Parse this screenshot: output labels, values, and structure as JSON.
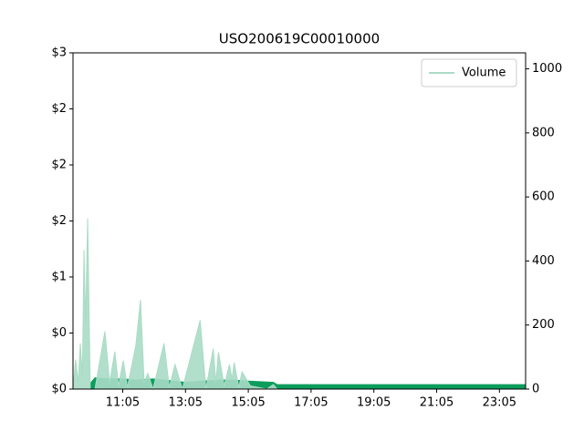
{
  "chart_data": {
    "type": "area",
    "title": "USO200619C00010000",
    "xlim": [
      "09:30",
      "23:55"
    ],
    "xticks": [
      "11:05",
      "13:05",
      "15:05",
      "17:05",
      "19:05",
      "21:05",
      "23:05"
    ],
    "ylim": [
      0,
      3
    ],
    "yticks": [
      {
        "value": 0,
        "label": "$0"
      },
      {
        "value": 0.5,
        "label": "$0"
      },
      {
        "value": 1,
        "label": "$1"
      },
      {
        "value": 1.5,
        "label": "$2"
      },
      {
        "value": 2,
        "label": "$2"
      },
      {
        "value": 2.5,
        "label": "$2"
      },
      {
        "value": 3,
        "label": "$3"
      }
    ],
    "y2lim": [
      0,
      1050
    ],
    "y2ticks": [
      0,
      200,
      400,
      600,
      800,
      1000
    ],
    "legend": "upper right",
    "series": [
      {
        "color": "#0c9d5c",
        "axis": "y",
        "x": [
          "10:03",
          "10:12",
          "10:40",
          "11:06",
          "11:30",
          "12:03",
          "12:45",
          "13:05",
          "13:33",
          "14:08",
          "14:38",
          "15:09",
          "15:53",
          "16:00",
          "23:55"
        ],
        "values": [
          0.05,
          0.1,
          0.09,
          0.09,
          0.08,
          0.09,
          0.07,
          0.06,
          0.07,
          0.08,
          0.08,
          0.07,
          0.06,
          0.04,
          0.04
        ]
      },
      {
        "name": "Volume",
        "color": "#a9dcc6",
        "axis": "y2",
        "x": [
          "09:30",
          "09:35",
          "09:40",
          "09:44",
          "09:48",
          "09:51",
          "09:54",
          "09:58",
          "10:03",
          "10:12",
          "10:31",
          "10:40",
          "10:50",
          "10:57",
          "11:06",
          "11:14",
          "11:30",
          "11:39",
          "11:46",
          "11:53",
          "12:03",
          "12:24",
          "12:34",
          "12:45",
          "12:59",
          "13:33",
          "13:44",
          "13:58",
          "14:03",
          "14:08",
          "14:19",
          "14:29",
          "14:34",
          "14:38",
          "14:47",
          "14:53",
          "15:09",
          "15:40",
          "15:53",
          "16:00",
          "23:55"
        ],
        "values": [
          0,
          92,
          20,
          143,
          40,
          435,
          200,
          533,
          0,
          0,
          180,
          20,
          117,
          10,
          89,
          5,
          135,
          278,
          20,
          49,
          0,
          143,
          5,
          77,
          0,
          215,
          0,
          126,
          20,
          115,
          10,
          77,
          30,
          83,
          5,
          54,
          10,
          0,
          14,
          0,
          0
        ]
      }
    ]
  }
}
